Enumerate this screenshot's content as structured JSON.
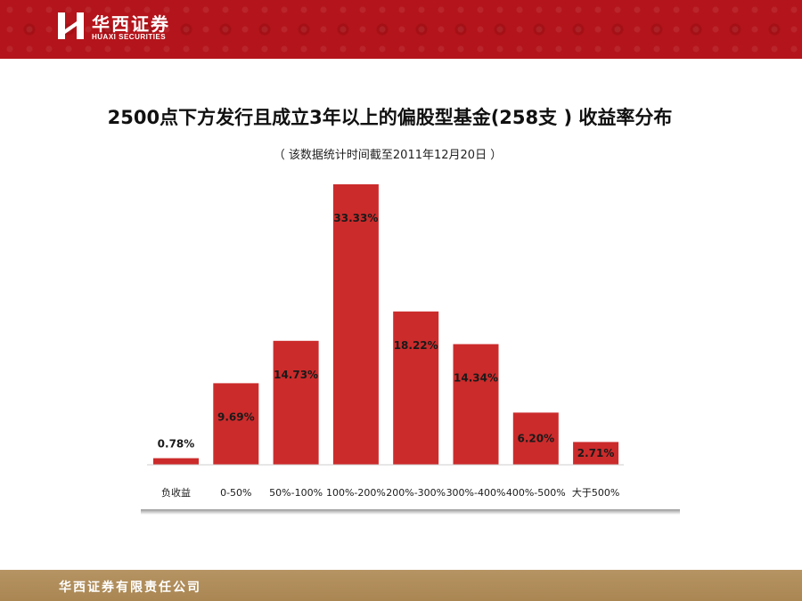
{
  "header": {
    "logo_cn": "华西证券",
    "logo_en": "HUAXI SECURITIES",
    "logo_mark": "H",
    "bg_color": "#b4141b"
  },
  "chart_data": {
    "type": "bar",
    "title": "2500点下方发行且成立3年以上的偏股型基金(258支 ) 收益率分布",
    "subtitle": "（ 该数据统计时间截至2011年12月20日 ）",
    "categories": [
      "负收益",
      "0-50%",
      "50%-100%",
      "100%-200%",
      "200%-300%",
      "300%-400%",
      "400%-500%",
      "大于500%"
    ],
    "values": [
      0.78,
      9.69,
      14.73,
      33.33,
      18.22,
      14.34,
      6.2,
      2.71
    ],
    "data_labels": [
      "0.78%",
      "9.69%",
      "14.73%",
      "33.33%",
      "18.22%",
      "14.34%",
      "6.20%",
      "2.71%"
    ],
    "label_position": [
      "above",
      "inside",
      "inside",
      "inside",
      "inside",
      "inside",
      "inside",
      "inside"
    ],
    "unit": "%",
    "ylim": [
      0,
      33.33
    ],
    "bar_color": "#cc2b2b",
    "grid": false,
    "legend": "none"
  },
  "footer": {
    "company": "华西证券有限责任公司",
    "bg_color": "#ae8b57"
  }
}
